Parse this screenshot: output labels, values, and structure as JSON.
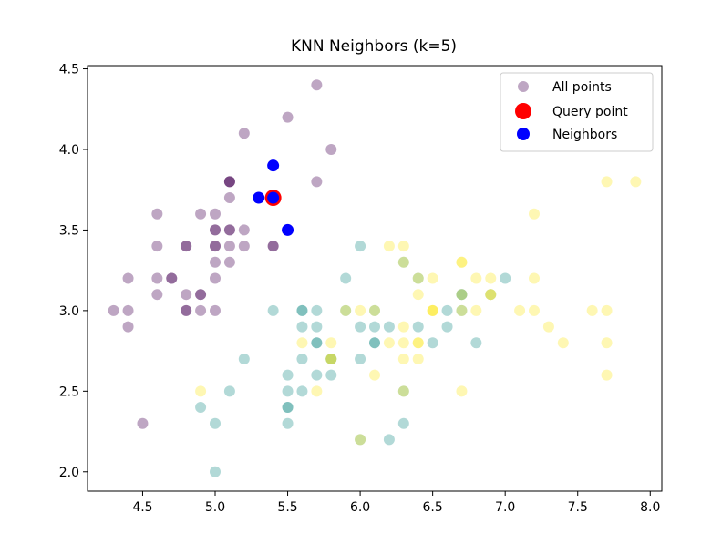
{
  "chart_data": {
    "type": "scatter",
    "title": "KNN Neighbors (k=5)",
    "xlabel": "",
    "ylabel": "",
    "xlim": [
      4.12,
      8.08
    ],
    "ylim": [
      1.88,
      4.52
    ],
    "xticks": [
      4.5,
      5.0,
      5.5,
      6.0,
      6.5,
      7.0,
      7.5,
      8.0
    ],
    "xtick_labels": [
      "4.5",
      "5.0",
      "5.5",
      "6.0",
      "6.5",
      "7.0",
      "7.5",
      "8.0"
    ],
    "yticks": [
      2.0,
      2.5,
      3.0,
      3.5,
      4.0,
      4.5
    ],
    "ytick_labels": [
      "2.0",
      "2.5",
      "3.0",
      "3.5",
      "4.0",
      "4.5"
    ],
    "grid": false,
    "legend_position": "top-right",
    "class_colors": [
      "#440154",
      "#21918c",
      "#fde725"
    ],
    "series": [
      {
        "name": "All points",
        "marker_color": "#c2a3c9",
        "alpha": 0.35,
        "points": [
          [
            5.1,
            3.5,
            0
          ],
          [
            4.9,
            3.0,
            0
          ],
          [
            4.7,
            3.2,
            0
          ],
          [
            4.6,
            3.1,
            0
          ],
          [
            5.0,
            3.6,
            0
          ],
          [
            5.4,
            3.9,
            0
          ],
          [
            4.6,
            3.4,
            0
          ],
          [
            5.0,
            3.4,
            0
          ],
          [
            4.4,
            2.9,
            0
          ],
          [
            4.9,
            3.1,
            0
          ],
          [
            5.4,
            3.7,
            0
          ],
          [
            4.8,
            3.4,
            0
          ],
          [
            4.8,
            3.0,
            0
          ],
          [
            4.3,
            3.0,
            0
          ],
          [
            5.8,
            4.0,
            0
          ],
          [
            5.7,
            4.4,
            0
          ],
          [
            5.4,
            3.9,
            0
          ],
          [
            5.1,
            3.5,
            0
          ],
          [
            5.7,
            3.8,
            0
          ],
          [
            5.1,
            3.8,
            0
          ],
          [
            5.4,
            3.4,
            0
          ],
          [
            5.1,
            3.7,
            0
          ],
          [
            4.6,
            3.6,
            0
          ],
          [
            5.1,
            3.3,
            0
          ],
          [
            4.8,
            3.4,
            0
          ],
          [
            5.0,
            3.0,
            0
          ],
          [
            5.0,
            3.4,
            0
          ],
          [
            5.2,
            3.5,
            0
          ],
          [
            5.2,
            3.4,
            0
          ],
          [
            4.7,
            3.2,
            0
          ],
          [
            4.8,
            3.1,
            0
          ],
          [
            5.4,
            3.4,
            0
          ],
          [
            5.2,
            4.1,
            0
          ],
          [
            5.5,
            4.2,
            0
          ],
          [
            4.9,
            3.1,
            0
          ],
          [
            5.0,
            3.2,
            0
          ],
          [
            5.5,
            3.5,
            0
          ],
          [
            4.9,
            3.6,
            0
          ],
          [
            4.4,
            3.0,
            0
          ],
          [
            5.1,
            3.4,
            0
          ],
          [
            5.0,
            3.5,
            0
          ],
          [
            4.5,
            2.3,
            0
          ],
          [
            4.4,
            3.2,
            0
          ],
          [
            5.0,
            3.5,
            0
          ],
          [
            5.1,
            3.8,
            0
          ],
          [
            4.8,
            3.0,
            0
          ],
          [
            5.1,
            3.8,
            0
          ],
          [
            4.6,
            3.2,
            0
          ],
          [
            5.3,
            3.7,
            0
          ],
          [
            5.0,
            3.3,
            0
          ],
          [
            7.0,
            3.2,
            1
          ],
          [
            6.4,
            3.2,
            1
          ],
          [
            6.9,
            3.1,
            1
          ],
          [
            5.5,
            2.3,
            1
          ],
          [
            6.5,
            2.8,
            1
          ],
          [
            5.7,
            2.8,
            1
          ],
          [
            6.3,
            3.3,
            1
          ],
          [
            4.9,
            2.4,
            1
          ],
          [
            6.6,
            2.9,
            1
          ],
          [
            5.2,
            2.7,
            1
          ],
          [
            5.0,
            2.0,
            1
          ],
          [
            5.9,
            3.0,
            1
          ],
          [
            6.0,
            2.2,
            1
          ],
          [
            6.1,
            2.9,
            1
          ],
          [
            5.6,
            2.9,
            1
          ],
          [
            6.7,
            3.1,
            1
          ],
          [
            5.6,
            3.0,
            1
          ],
          [
            5.8,
            2.7,
            1
          ],
          [
            6.2,
            2.2,
            1
          ],
          [
            5.6,
            2.5,
            1
          ],
          [
            5.9,
            3.2,
            1
          ],
          [
            6.1,
            2.8,
            1
          ],
          [
            6.3,
            2.5,
            1
          ],
          [
            6.1,
            2.8,
            1
          ],
          [
            6.4,
            2.9,
            1
          ],
          [
            6.6,
            3.0,
            1
          ],
          [
            6.8,
            2.8,
            1
          ],
          [
            6.7,
            3.0,
            1
          ],
          [
            6.0,
            2.9,
            1
          ],
          [
            5.7,
            2.6,
            1
          ],
          [
            5.5,
            2.4,
            1
          ],
          [
            5.5,
            2.4,
            1
          ],
          [
            5.8,
            2.7,
            1
          ],
          [
            6.0,
            2.7,
            1
          ],
          [
            5.4,
            3.0,
            1
          ],
          [
            6.0,
            3.4,
            1
          ],
          [
            6.7,
            3.1,
            1
          ],
          [
            6.3,
            2.3,
            1
          ],
          [
            5.6,
            3.0,
            1
          ],
          [
            5.5,
            2.5,
            1
          ],
          [
            5.5,
            2.6,
            1
          ],
          [
            6.1,
            3.0,
            1
          ],
          [
            5.8,
            2.6,
            1
          ],
          [
            5.0,
            2.3,
            1
          ],
          [
            5.6,
            2.7,
            1
          ],
          [
            5.7,
            3.0,
            1
          ],
          [
            5.7,
            2.9,
            1
          ],
          [
            6.2,
            2.9,
            1
          ],
          [
            5.1,
            2.5,
            1
          ],
          [
            5.7,
            2.8,
            1
          ],
          [
            6.3,
            3.3,
            2
          ],
          [
            5.8,
            2.7,
            2
          ],
          [
            7.1,
            3.0,
            2
          ],
          [
            6.3,
            2.9,
            2
          ],
          [
            6.5,
            3.0,
            2
          ],
          [
            7.6,
            3.0,
            2
          ],
          [
            4.9,
            2.5,
            2
          ],
          [
            7.3,
            2.9,
            2
          ],
          [
            6.7,
            2.5,
            2
          ],
          [
            7.2,
            3.6,
            2
          ],
          [
            6.5,
            3.2,
            2
          ],
          [
            6.4,
            2.7,
            2
          ],
          [
            6.8,
            3.0,
            2
          ],
          [
            5.7,
            2.5,
            2
          ],
          [
            5.8,
            2.8,
            2
          ],
          [
            6.4,
            3.2,
            2
          ],
          [
            6.5,
            3.0,
            2
          ],
          [
            7.7,
            3.8,
            2
          ],
          [
            7.7,
            2.6,
            2
          ],
          [
            6.0,
            2.2,
            2
          ],
          [
            6.9,
            3.2,
            2
          ],
          [
            5.6,
            2.8,
            2
          ],
          [
            7.7,
            2.8,
            2
          ],
          [
            6.3,
            2.7,
            2
          ],
          [
            6.7,
            3.3,
            2
          ],
          [
            7.2,
            3.2,
            2
          ],
          [
            6.2,
            2.8,
            2
          ],
          [
            6.1,
            3.0,
            2
          ],
          [
            6.4,
            2.8,
            2
          ],
          [
            7.2,
            3.0,
            2
          ],
          [
            7.4,
            2.8,
            2
          ],
          [
            7.9,
            3.8,
            2
          ],
          [
            6.4,
            2.8,
            2
          ],
          [
            6.3,
            2.8,
            2
          ],
          [
            6.1,
            2.6,
            2
          ],
          [
            7.7,
            3.0,
            2
          ],
          [
            6.3,
            3.4,
            2
          ],
          [
            6.4,
            3.1,
            2
          ],
          [
            6.0,
            3.0,
            2
          ],
          [
            6.9,
            3.1,
            2
          ],
          [
            6.7,
            3.1,
            2
          ],
          [
            6.9,
            3.1,
            2
          ],
          [
            5.8,
            2.7,
            2
          ],
          [
            6.8,
            3.2,
            2
          ],
          [
            6.7,
            3.3,
            2
          ],
          [
            6.7,
            3.0,
            2
          ],
          [
            6.3,
            2.5,
            2
          ],
          [
            6.5,
            3.0,
            2
          ],
          [
            6.2,
            3.4,
            2
          ],
          [
            5.9,
            3.0,
            2
          ]
        ]
      },
      {
        "name": "Query point",
        "marker_color": "#ff0000",
        "points": [
          [
            5.4,
            3.7
          ]
        ]
      },
      {
        "name": "Neighbors",
        "marker_color": "#0000ff",
        "points": [
          [
            5.4,
            3.7
          ],
          [
            5.3,
            3.7
          ],
          [
            5.4,
            3.9
          ],
          [
            5.5,
            3.5
          ]
        ]
      }
    ]
  }
}
